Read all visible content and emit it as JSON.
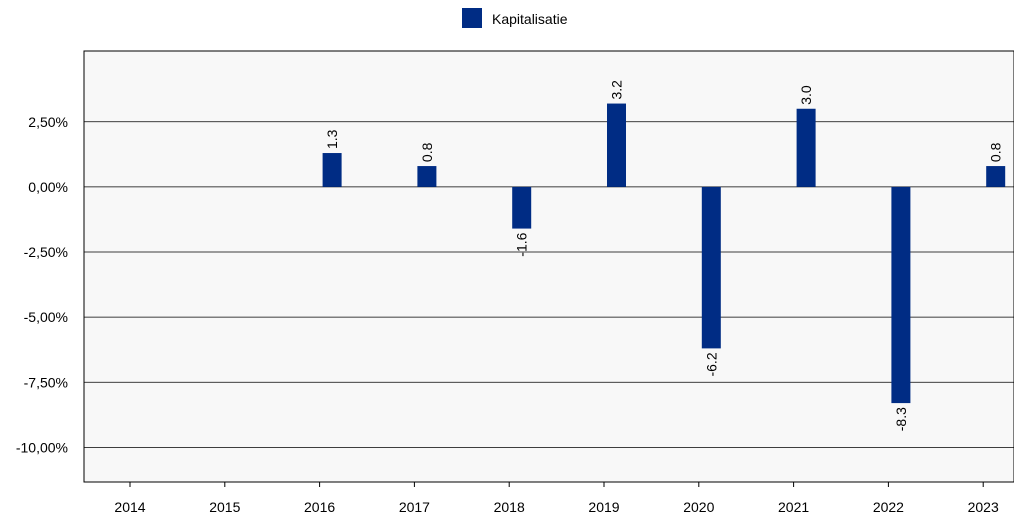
{
  "chart_data": {
    "type": "bar",
    "title": "",
    "xlabel": "",
    "ylabel": "",
    "categories": [
      "2014",
      "2015",
      "2016",
      "2017",
      "2018",
      "2019",
      "2020",
      "2021",
      "2022",
      "2023"
    ],
    "series": [
      {
        "name": "Kapitalisatie",
        "color": "#002c84",
        "values": [
          null,
          null,
          1.3,
          0.8,
          -1.6,
          3.2,
          -6.2,
          3.0,
          -8.3,
          0.8
        ],
        "labels": [
          "",
          "",
          "1.3",
          "0.8",
          "-1.6",
          "3.2",
          "-6.2",
          "3.0",
          "-8.3",
          "0.8"
        ]
      }
    ],
    "ylim": [
      -10.6,
      4.2
    ],
    "yticks": [
      2.5,
      0,
      -2.5,
      -5,
      -7.5,
      -10
    ],
    "ytick_labels": [
      "2,50%",
      "0,00%",
      "-2,50%",
      "-5,00%",
      "-7,50%",
      "-10,00%"
    ],
    "grid": true,
    "legend_position": "top-center",
    "plot_background": "#f8f8f8"
  }
}
